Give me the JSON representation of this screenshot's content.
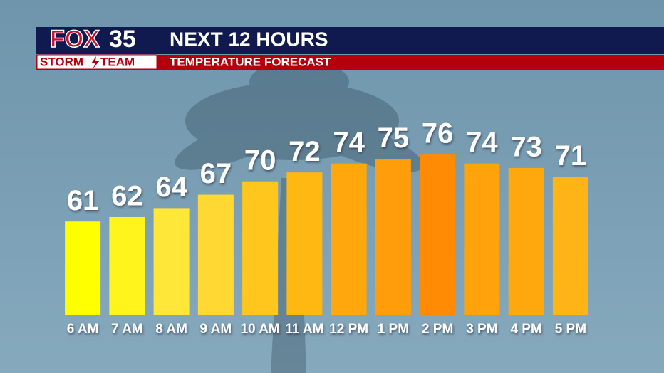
{
  "logo": {
    "brand": "FOX",
    "number": "35",
    "team_left": "STORM",
    "team_right": "TEAM"
  },
  "chart_data": {
    "type": "bar",
    "title": "NEXT 12 HOURS",
    "subtitle": "TEMPERATURE FORECAST",
    "categories": [
      "6 AM",
      "7 AM",
      "8 AM",
      "9 AM",
      "10 AM",
      "11 AM",
      "12 PM",
      "1 PM",
      "2 PM",
      "3 PM",
      "4 PM",
      "5 PM"
    ],
    "values": [
      61,
      62,
      64,
      67,
      70,
      72,
      74,
      75,
      76,
      74,
      73,
      71
    ],
    "colors": [
      "#ffff00",
      "#fff41c",
      "#ffe73a",
      "#ffd834",
      "#ffc61e",
      "#ffb812",
      "#ffa70c",
      "#ff9d0a",
      "#ff8a04",
      "#ffa30c",
      "#ffa80e",
      "#ffb416"
    ],
    "ylim": [
      40,
      80
    ]
  }
}
